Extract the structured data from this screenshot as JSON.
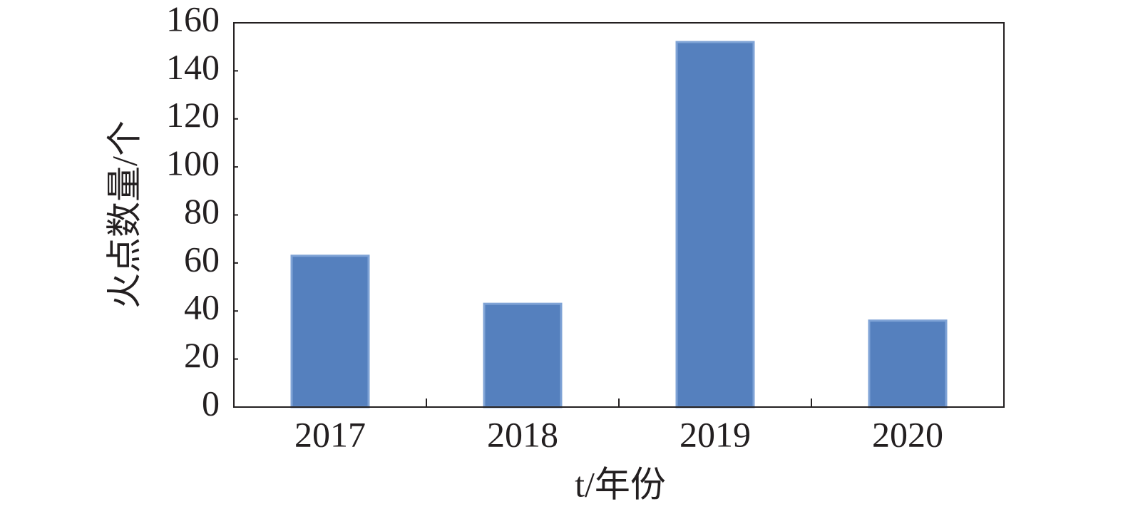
{
  "chart_data": {
    "type": "bar",
    "x_label": "t/年份",
    "y_label": "火点数量/个",
    "categories": [
      "2017",
      "2018",
      "2019",
      "2020"
    ],
    "values": [
      63,
      43,
      152,
      36
    ],
    "color": "#5580be",
    "ylim": [
      0,
      160
    ],
    "yticks": [
      0,
      20,
      40,
      60,
      80,
      100,
      120,
      140,
      160
    ]
  }
}
